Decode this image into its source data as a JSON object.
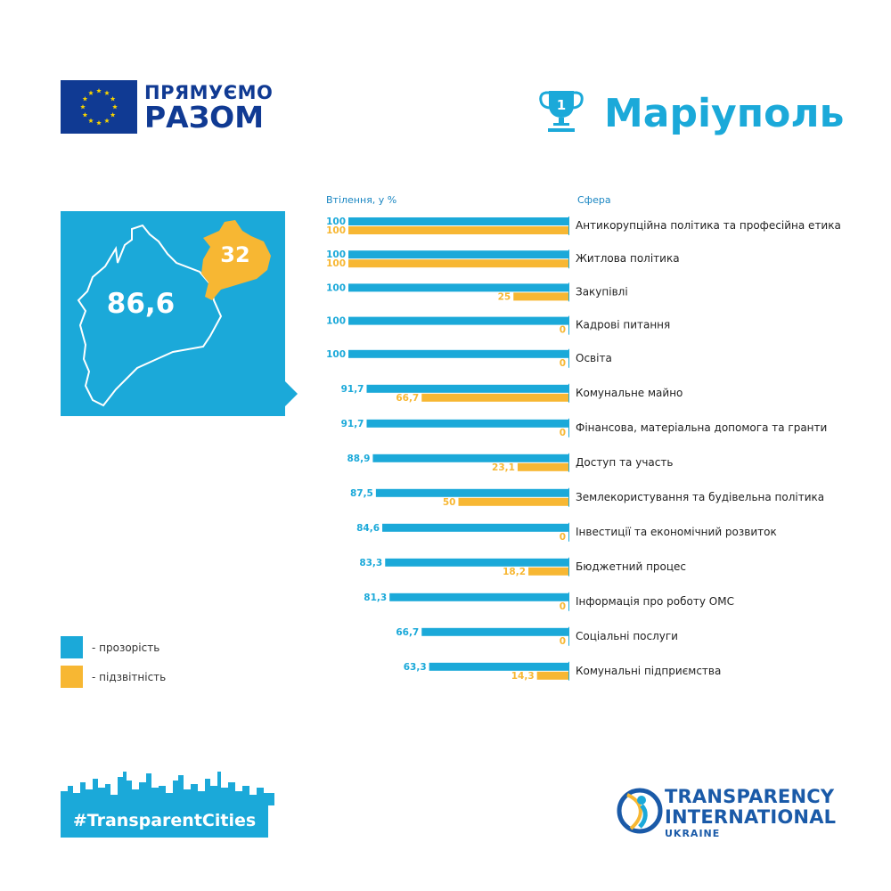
{
  "brand": {
    "eu_line1": "ПРЯМУЄМО",
    "eu_line2": "РАЗОМ",
    "rank": "1",
    "city": "Маріуполь",
    "hashtag": "#TransparentCities",
    "ti_line1": "TRANSPARENCY",
    "ti_line2": "INTERNATIONAL",
    "ti_line3": "UKRAINE"
  },
  "map": {
    "transparency_score": "86,6",
    "accountability_score": "32"
  },
  "legend": [
    {
      "label": "- прозорість",
      "color": "#1ba9d9"
    },
    {
      "label": "- підзвітність",
      "color": "#f7b733"
    }
  ],
  "chart_data": {
    "type": "bar",
    "orientation": "horizontal",
    "xlabel": "Втілення, у %",
    "category_label": "Сфера",
    "xlim": [
      0,
      100
    ],
    "grid": false,
    "categories": [
      "Антикорупційна політика та професійна етика",
      "Житлова політика",
      "Закупівлі",
      "Кадрові питання",
      "Освіта",
      "Комунальне майно",
      "Фінансова, матеріальна допомога та гранти",
      "Доступ та участь",
      "Землекористування та будівельна політика",
      "Інвестиції та економічний розвиток",
      "Бюджетний процес",
      "Інформація про роботу ОМС",
      "Соціальні послуги",
      "Комунальні підприємства"
    ],
    "series": [
      {
        "name": "прозорість",
        "color": "#1ba9d9",
        "values": [
          100,
          100,
          100,
          100,
          100,
          91.7,
          91.7,
          88.9,
          87.5,
          84.6,
          83.3,
          81.3,
          66.7,
          63.3
        ],
        "labels": [
          "100",
          "100",
          "100",
          "100",
          "100",
          "91,7",
          "91,7",
          "88,9",
          "87,5",
          "84,6",
          "83,3",
          "81,3",
          "66,7",
          "63,3"
        ]
      },
      {
        "name": "підзвітність",
        "color": "#f7b733",
        "values": [
          100,
          100,
          25,
          0,
          0,
          66.7,
          0,
          23.1,
          50,
          0,
          18.2,
          0,
          0,
          14.3
        ],
        "labels": [
          "100",
          "100",
          "25",
          "0",
          "0",
          "66,7",
          "0",
          "23,1",
          "50",
          "0",
          "18,2",
          "0",
          "0",
          "14,3"
        ]
      }
    ]
  }
}
